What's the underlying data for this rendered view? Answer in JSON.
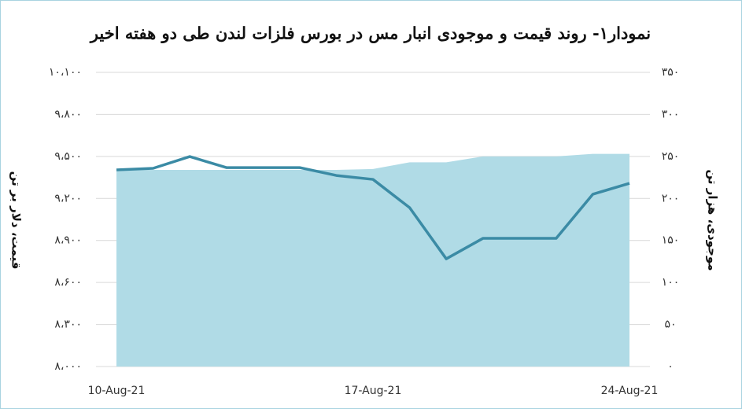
{
  "chart_data": {
    "type": "line-area",
    "title": "نمودار۱- روند قیمت و موجودی انبار مس در بورس فلزات لندن طی دو هفته اخیر",
    "y_label": "قیمت، دلار بر تن",
    "y2_label": "موجودی، هزار تن",
    "categories": [
      "10-Aug-21",
      null,
      null,
      null,
      null,
      null,
      null,
      "17-Aug-21",
      null,
      null,
      null,
      null,
      null,
      null,
      "24-Aug-21"
    ],
    "series": [
      {
        "name": "موجودی",
        "type": "area",
        "axis": "y2",
        "color": "#b0dbe6",
        "values": [
          234,
          234,
          234,
          234,
          234,
          234,
          234,
          235,
          243,
          243,
          250,
          250,
          250,
          253,
          253
        ]
      },
      {
        "name": "قیمت",
        "type": "line",
        "axis": "y",
        "color": "#3b8ba5",
        "values": [
          9404,
          9415,
          9499,
          9420,
          9420,
          9420,
          9364,
          9336,
          9134,
          8769,
          8915,
          8915,
          8915,
          9230,
          9308
        ]
      }
    ],
    "ylim": [
      8000,
      10100
    ],
    "yticks": [
      {
        "value": 8000,
        "label": "۸،۰۰۰"
      },
      {
        "value": 8300,
        "label": "۸،۳۰۰"
      },
      {
        "value": 8600,
        "label": "۸،۶۰۰"
      },
      {
        "value": 8900,
        "label": "۸،۹۰۰"
      },
      {
        "value": 9200,
        "label": "۹،۲۰۰"
      },
      {
        "value": 9500,
        "label": "۹،۵۰۰"
      },
      {
        "value": 9800,
        "label": "۹،۸۰۰"
      },
      {
        "value": 10100,
        "label": "۱۰،۱۰۰"
      }
    ],
    "y2lim": [
      0,
      350
    ],
    "y2ticks": [
      {
        "value": 0,
        "label": "۰"
      },
      {
        "value": 50,
        "label": "۵۰"
      },
      {
        "value": 100,
        "label": "۱۰۰"
      },
      {
        "value": 150,
        "label": "۱۵۰"
      },
      {
        "value": 200,
        "label": "۲۰۰"
      },
      {
        "value": 250,
        "label": "۲۵۰"
      },
      {
        "value": 300,
        "label": "۳۰۰"
      },
      {
        "value": 350,
        "label": "۳۵۰"
      }
    ],
    "grid": true
  }
}
